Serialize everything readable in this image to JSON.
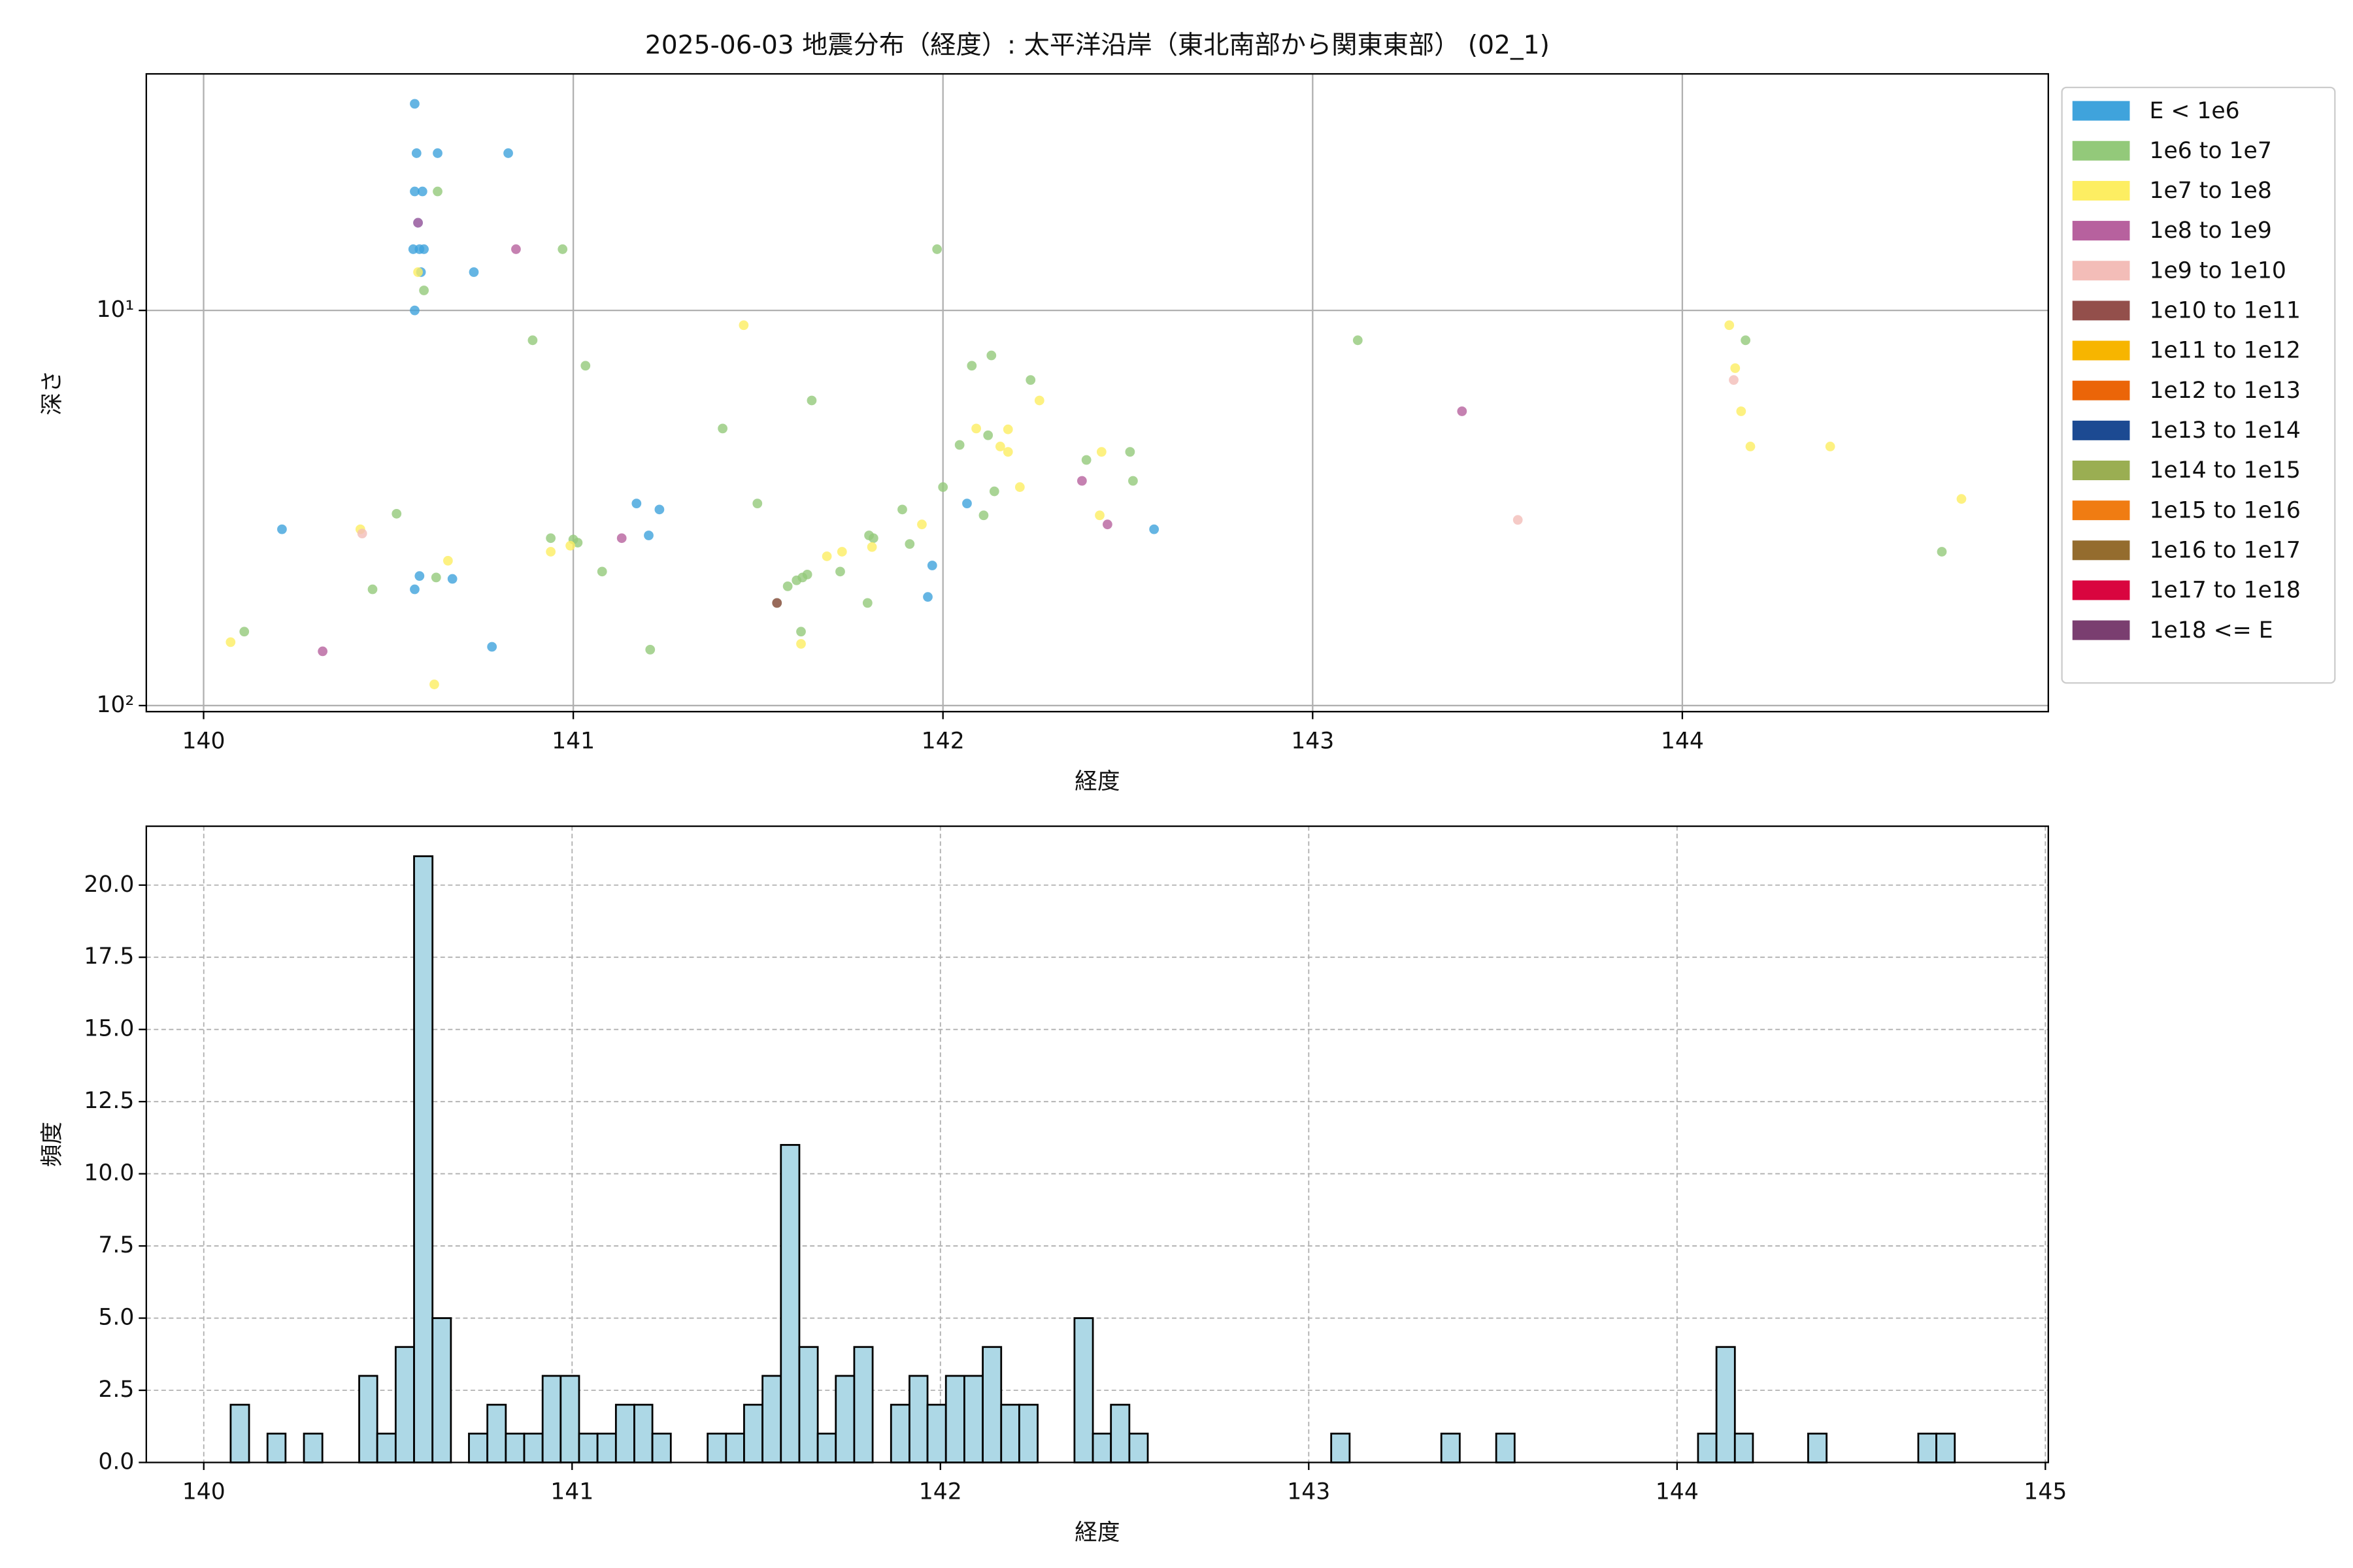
{
  "chart_data": [
    {
      "type": "scatter",
      "title": "2025-06-03 地震分布（経度）: 太平洋沿岸（東北南部から関東東部） (02_1)",
      "x_label": "経度",
      "y_label": "深さ",
      "xlim": [
        139.845,
        144.99
      ],
      "xticks": [
        140,
        141,
        142,
        143,
        144
      ],
      "ylim": [
        2.52,
        103.6
      ],
      "log_y": true,
      "y_inverted": true,
      "yticks": [
        {
          "value": 10,
          "label": "10¹"
        },
        {
          "value": 100,
          "label": "10²"
        }
      ],
      "grid": "solid",
      "legend": "outside-right",
      "series": [
        {
          "name": "E < 1e6",
          "color": "#3fa3dc",
          "x": [
            140.571,
            140.576,
            140.633,
            140.824,
            140.571,
            140.592,
            140.58,
            140.567,
            140.584,
            140.596,
            140.588,
            140.731,
            140.571,
            140.212,
            141.171,
            141.233,
            141.204,
            142.065,
            140.584,
            140.571,
            140.673,
            141.971,
            141.959,
            140.78,
            142.571
          ],
          "values": [
            3.0,
            4.0,
            4.0,
            4.0,
            5.0,
            5.0,
            6.0,
            7.0,
            7.0,
            7.0,
            8.0,
            8.0,
            10.0,
            35.8,
            30.8,
            31.9,
            37.1,
            30.8,
            47.0,
            50.8,
            47.8,
            44.2,
            53.1,
            71.0,
            35.8
          ]
        },
        {
          "name": "1e6 to 1e7",
          "color": "#93c97a",
          "x": [
            140.633,
            140.596,
            140.971,
            140.89,
            141.033,
            140.522,
            140.939,
            141.0,
            141.012,
            141.078,
            140.457,
            140.629,
            141.208,
            140.11,
            141.404,
            141.498,
            141.645,
            141.984,
            142.078,
            142.131,
            142.237,
            142.045,
            142.122,
            142.139,
            142.11,
            142.0,
            141.89,
            141.8,
            141.812,
            141.91,
            141.722,
            141.796,
            141.616,
            141.551,
            141.58,
            141.604,
            141.62,
            141.633,
            143.122,
            142.388,
            142.506,
            142.514,
            144.171,
            144.702
          ],
          "values": [
            5.0,
            8.9,
            7.0,
            11.9,
            13.8,
            32.7,
            37.7,
            38.0,
            38.7,
            45.8,
            50.8,
            47.4,
            72.2,
            65.0,
            19.9,
            30.8,
            16.9,
            7.0,
            13.8,
            13.0,
            15.0,
            21.9,
            20.7,
            28.7,
            33.0,
            28.0,
            31.9,
            37.1,
            37.7,
            39.0,
            45.8,
            55.0,
            65.0,
            55.0,
            49.9,
            48.2,
            47.4,
            46.6,
            11.9,
            23.9,
            22.8,
            27.0,
            11.9,
            40.8
          ]
        },
        {
          "name": "1e7 to 1e8",
          "color": "#fdee62",
          "x": [
            140.58,
            141.461,
            140.424,
            140.661,
            140.939,
            140.992,
            140.073,
            140.624,
            141.686,
            141.727,
            141.808,
            141.943,
            141.616,
            142.09,
            142.176,
            142.155,
            142.176,
            142.208,
            142.261,
            142.429,
            142.424,
            144.127,
            144.143,
            144.159,
            144.184,
            144.4,
            144.755
          ],
          "values": [
            8.0,
            10.9,
            35.8,
            43.0,
            40.8,
            39.4,
            69.1,
            88.4,
            41.9,
            40.8,
            39.7,
            34.8,
            69.8,
            19.9,
            20.0,
            22.1,
            22.8,
            28.0,
            16.9,
            22.8,
            33.0,
            10.9,
            14.0,
            18.0,
            22.1,
            22.1,
            30.0
          ]
        },
        {
          "name": "1e8 to 1e9",
          "color": "#b7619e",
          "x": [
            140.58,
            140.845,
            140.322,
            141.131,
            142.376,
            142.445,
            143.404
          ],
          "values": [
            6.0,
            7.0,
            72.9,
            37.7,
            27.0,
            34.8,
            18.0
          ]
        },
        {
          "name": "1e9 to 1e10",
          "color": "#f3bdb8",
          "x": [
            140.429,
            144.139,
            143.555
          ],
          "values": [
            36.7,
            15.0,
            33.9
          ]
        },
        {
          "name": "1e10 to 1e11",
          "color": "#934f4b",
          "x": [
            141.551
          ],
          "values": [
            55.0
          ]
        },
        {
          "name": "1e11 to 1e12",
          "color": "#f7b500",
          "x": [],
          "values": []
        },
        {
          "name": "1e12 to 1e13",
          "color": "#eb6508",
          "x": [],
          "values": []
        },
        {
          "name": "1e13 to 1e14",
          "color": "#1c4a92",
          "x": [],
          "values": []
        },
        {
          "name": "1e14 to 1e15",
          "color": "#9aae52",
          "x": [],
          "values": []
        },
        {
          "name": "1e15 to 1e16",
          "color": "#f07c12",
          "x": [],
          "values": []
        },
        {
          "name": "1e16 to 1e17",
          "color": "#946c2e",
          "x": [],
          "values": []
        },
        {
          "name": "1e17 to 1e18",
          "color": "#d9053f",
          "x": [],
          "values": []
        },
        {
          "name": "1e18 <= E",
          "color": "#7a3e70",
          "x": [],
          "values": []
        }
      ]
    },
    {
      "type": "histogram",
      "x_label": "経度",
      "y_label": "頻度",
      "xlim": [
        139.844,
        145.008
      ],
      "xticks": [
        140,
        141,
        142,
        143,
        144,
        145
      ],
      "ylim": [
        0,
        22.04
      ],
      "yticks": [
        {
          "value": 0,
          "label": "0.0"
        },
        {
          "value": 2.5,
          "label": "2.5"
        },
        {
          "value": 5,
          "label": "5.0"
        },
        {
          "value": 7.5,
          "label": "7.5"
        },
        {
          "value": 10,
          "label": "10.0"
        },
        {
          "value": 12.5,
          "label": "12.5"
        },
        {
          "value": 15,
          "label": "15.0"
        },
        {
          "value": 17.5,
          "label": "17.5"
        },
        {
          "value": 20,
          "label": "20.0"
        }
      ],
      "grid": "dashed",
      "color": "#add8e6",
      "edge_color": "#000000",
      "bins": [
        140.073,
        140.123,
        140.173,
        140.222,
        140.272,
        140.322,
        140.372,
        140.422,
        140.471,
        140.521,
        140.571,
        140.621,
        140.671,
        140.72,
        140.77,
        140.82,
        140.87,
        140.92,
        140.969,
        141.019,
        141.069,
        141.119,
        141.169,
        141.218,
        141.268,
        141.318,
        141.368,
        141.418,
        141.467,
        141.517,
        141.567,
        141.617,
        141.667,
        141.716,
        141.766,
        141.816,
        141.866,
        141.916,
        141.965,
        142.015,
        142.065,
        142.115,
        142.165,
        142.214,
        142.264,
        142.314,
        142.364,
        142.414,
        142.463,
        142.513,
        142.563,
        142.613,
        142.663,
        142.712,
        142.762,
        142.812,
        142.862,
        142.912,
        142.961,
        143.011,
        143.061,
        143.111,
        143.161,
        143.21,
        143.26,
        143.31,
        143.36,
        143.41,
        143.459,
        143.509,
        143.559,
        143.609,
        143.659,
        143.708,
        143.758,
        143.808,
        143.858,
        143.908,
        143.957,
        144.007,
        144.057,
        144.107,
        144.157,
        144.206,
        144.256,
        144.306,
        144.356,
        144.406,
        144.455,
        144.505,
        144.555,
        144.605,
        144.655,
        144.704,
        144.754
      ],
      "counts": [
        2,
        0,
        1,
        0,
        1,
        0,
        0,
        3,
        1,
        4,
        21,
        5,
        0,
        1,
        2,
        1,
        1,
        3,
        3,
        1,
        1,
        2,
        2,
        1,
        0,
        0,
        1,
        1,
        2,
        3,
        11,
        4,
        1,
        3,
        4,
        0,
        2,
        3,
        2,
        3,
        3,
        4,
        2,
        2,
        0,
        0,
        5,
        1,
        2,
        1,
        0,
        0,
        0,
        0,
        0,
        0,
        0,
        0,
        0,
        0,
        1,
        0,
        0,
        0,
        0,
        0,
        1,
        0,
        0,
        1,
        0,
        0,
        0,
        0,
        0,
        0,
        0,
        0,
        0,
        0,
        1,
        4,
        1,
        0,
        0,
        0,
        1,
        0,
        0,
        0,
        0,
        0,
        1,
        1
      ]
    }
  ]
}
